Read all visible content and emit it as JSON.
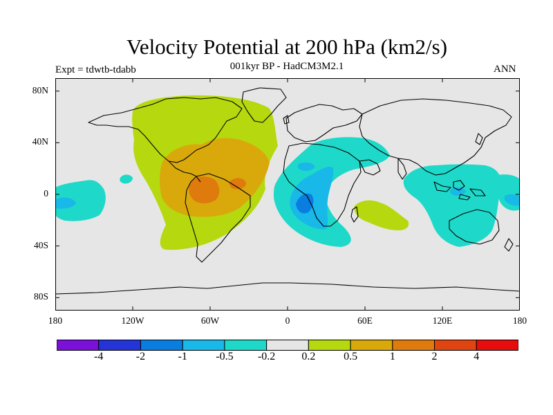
{
  "title": "Velocity Potential at 200 hPa (km2/s)",
  "subtitle": "001kyr BP - HadCM3M2.1",
  "experiment": "Expt = tdwtb-tdabb",
  "season": "ANN",
  "map": {
    "projection": "cylindrical-equidistant",
    "lon_range": [
      -180,
      180
    ],
    "lat_range": [
      -90,
      90
    ],
    "background_color": "#e6e6e6",
    "y_ticks": [
      {
        "lat": 80,
        "label": "80N"
      },
      {
        "lat": 40,
        "label": "40N"
      },
      {
        "lat": 0,
        "label": "0"
      },
      {
        "lat": -40,
        "label": "40S"
      },
      {
        "lat": -80,
        "label": "80S"
      }
    ],
    "x_ticks": [
      {
        "lon": -180,
        "label": "180"
      },
      {
        "lon": -120,
        "label": "120W"
      },
      {
        "lon": -60,
        "label": "60W"
      },
      {
        "lon": 0,
        "label": "0"
      },
      {
        "lon": 60,
        "label": "60E"
      },
      {
        "lon": 120,
        "label": "120E"
      },
      {
        "lon": 180,
        "label": "180"
      }
    ]
  },
  "colorbar": {
    "colors": [
      "#7b10d8",
      "#2434d6",
      "#0a7ee0",
      "#18b8e8",
      "#1ed9c9",
      "#e6e6e6",
      "#b6d80e",
      "#d9a90c",
      "#df7a0c",
      "#e04410",
      "#e80d0d"
    ],
    "labels": [
      "-4",
      "-2",
      "-1",
      "-0.5",
      "-0.2",
      "0.2",
      "0.5",
      "1",
      "2",
      "4"
    ]
  }
}
